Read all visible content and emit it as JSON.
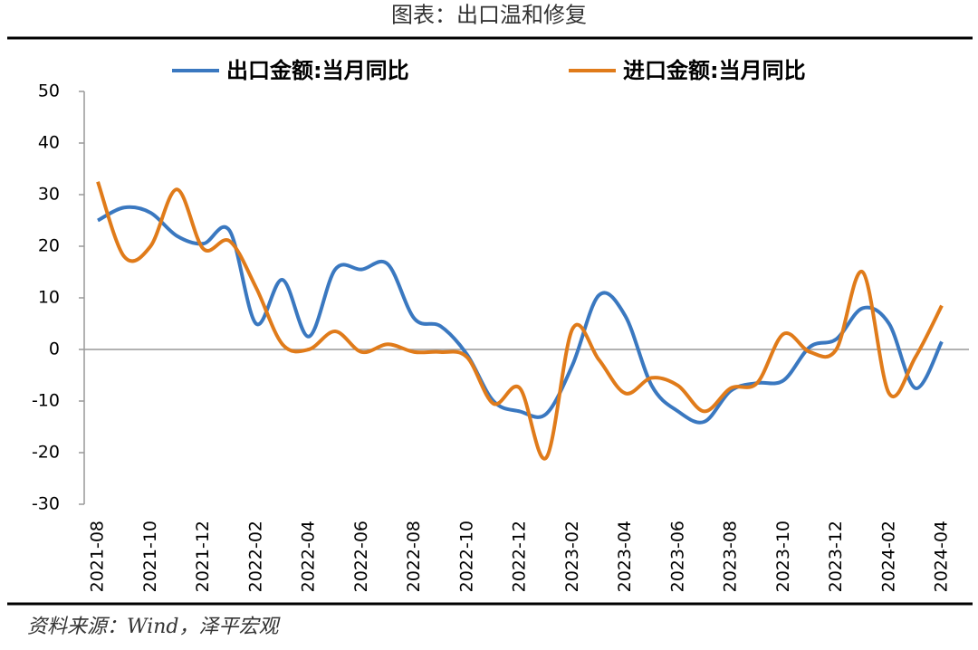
{
  "chart_data": {
    "type": "line",
    "title": "图表：出口温和修复",
    "source": "资料来源：Wind，泽平宏观",
    "categories": [
      "2021-08",
      null,
      "2021-10",
      null,
      "2021-12",
      null,
      "2022-02",
      null,
      "2022-04",
      null,
      "2022-06",
      null,
      "2022-08",
      null,
      "2022-10",
      null,
      "2022-12",
      null,
      "2023-02",
      null,
      "2023-04",
      null,
      "2023-06",
      null,
      "2023-08",
      null,
      "2023-10",
      null,
      "2023-12",
      null,
      "2024-02",
      null,
      "2024-04"
    ],
    "series": [
      {
        "name": "出口金额:当月同比",
        "color": "#3a78c0",
        "values": [
          25,
          27.5,
          26.5,
          22,
          20.5,
          23,
          5,
          13.5,
          2.5,
          15.5,
          15.5,
          16.5,
          6,
          4.5,
          -1,
          -10,
          -12,
          -12.5,
          -3,
          10.5,
          6.5,
          -7,
          -12,
          -14,
          -8,
          -6.5,
          -6,
          0.5,
          2,
          8,
          5,
          -7.5,
          1.5
        ]
      },
      {
        "name": "进口金额:当月同比",
        "color": "#e07b1a",
        "values": [
          32.5,
          18,
          20,
          31,
          19.5,
          21,
          12,
          1,
          0,
          3.5,
          -0.5,
          1,
          -0.5,
          -0.5,
          -1.5,
          -10.5,
          -7.5,
          -21,
          4,
          -2,
          -8.5,
          -5.5,
          -7,
          -12,
          -7.5,
          -6.5,
          3,
          -0.5,
          0,
          15,
          -8.5,
          -1.5,
          8.5
        ]
      }
    ],
    "ylim": [
      -30,
      50
    ],
    "yticks": [
      -30,
      -20,
      -10,
      0,
      10,
      20,
      30,
      40,
      50
    ]
  }
}
